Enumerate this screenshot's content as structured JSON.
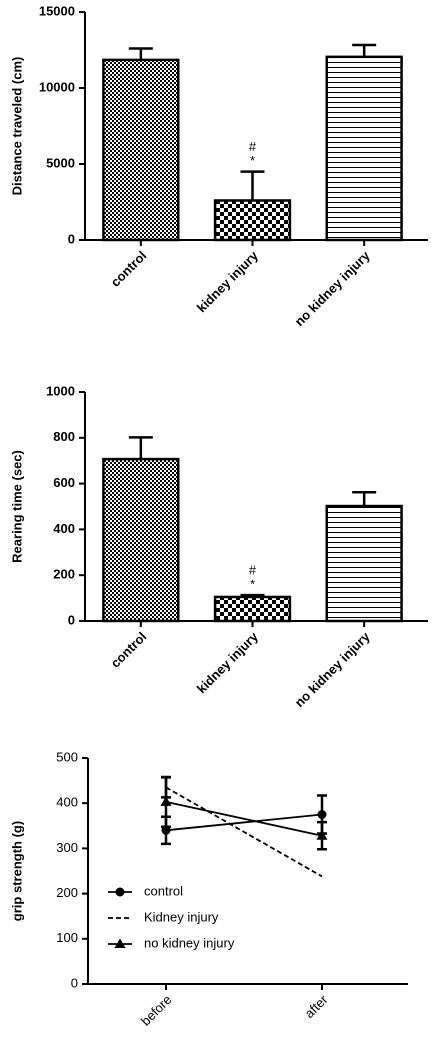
{
  "chart_data": [
    {
      "type": "bar",
      "y_label": "Distance traveled (cm)",
      "categories": [
        "control",
        "kidney injury",
        "no kidney injury"
      ],
      "values": [
        11850,
        2600,
        12050
      ],
      "errors": [
        750,
        1900,
        780
      ],
      "patterns": [
        "fine-checker",
        "checker",
        "horizontal-lines"
      ],
      "color": "#000000",
      "ylim": [
        0,
        15000
      ],
      "yticks": [
        0,
        5000,
        10000,
        15000
      ],
      "annotations": [
        {
          "category": "kidney injury",
          "text": "#"
        },
        {
          "category": "kidney injury",
          "text": "*"
        }
      ]
    },
    {
      "type": "bar",
      "y_label": "Rearing time (sec)",
      "categories": [
        "control",
        "kidney injury",
        "no kidney injury"
      ],
      "values": [
        707,
        105,
        502
      ],
      "errors": [
        95,
        8,
        60
      ],
      "patterns": [
        "fine-checker",
        "checker",
        "horizontal-lines"
      ],
      "color": "#000000",
      "ylim": [
        0,
        1000
      ],
      "yticks": [
        0,
        200,
        400,
        600,
        800,
        1000
      ],
      "annotations": [
        {
          "category": "kidney injury",
          "text": "#"
        },
        {
          "category": "kidney injury",
          "text": "*"
        }
      ]
    },
    {
      "type": "line",
      "y_label": "grip strength (g)",
      "categories": [
        "before",
        "after"
      ],
      "ylim": [
        0,
        500
      ],
      "yticks": [
        0,
        100,
        200,
        300,
        400,
        500
      ],
      "series": [
        {
          "name": "control",
          "color": "#000000",
          "marker": "circle",
          "dash": false,
          "values": [
            340,
            375
          ],
          "errors": [
            30,
            42
          ]
        },
        {
          "name": "Kidney injury",
          "color": "#000000",
          "marker": "none",
          "dash": true,
          "values": [
            435,
            238
          ],
          "errors": [
            22,
            0
          ]
        },
        {
          "name": "no kidney injury",
          "color": "#000000",
          "marker": "triangle",
          "dash": false,
          "values": [
            403,
            328
          ],
          "errors": [
            55,
            30
          ]
        }
      ]
    }
  ]
}
